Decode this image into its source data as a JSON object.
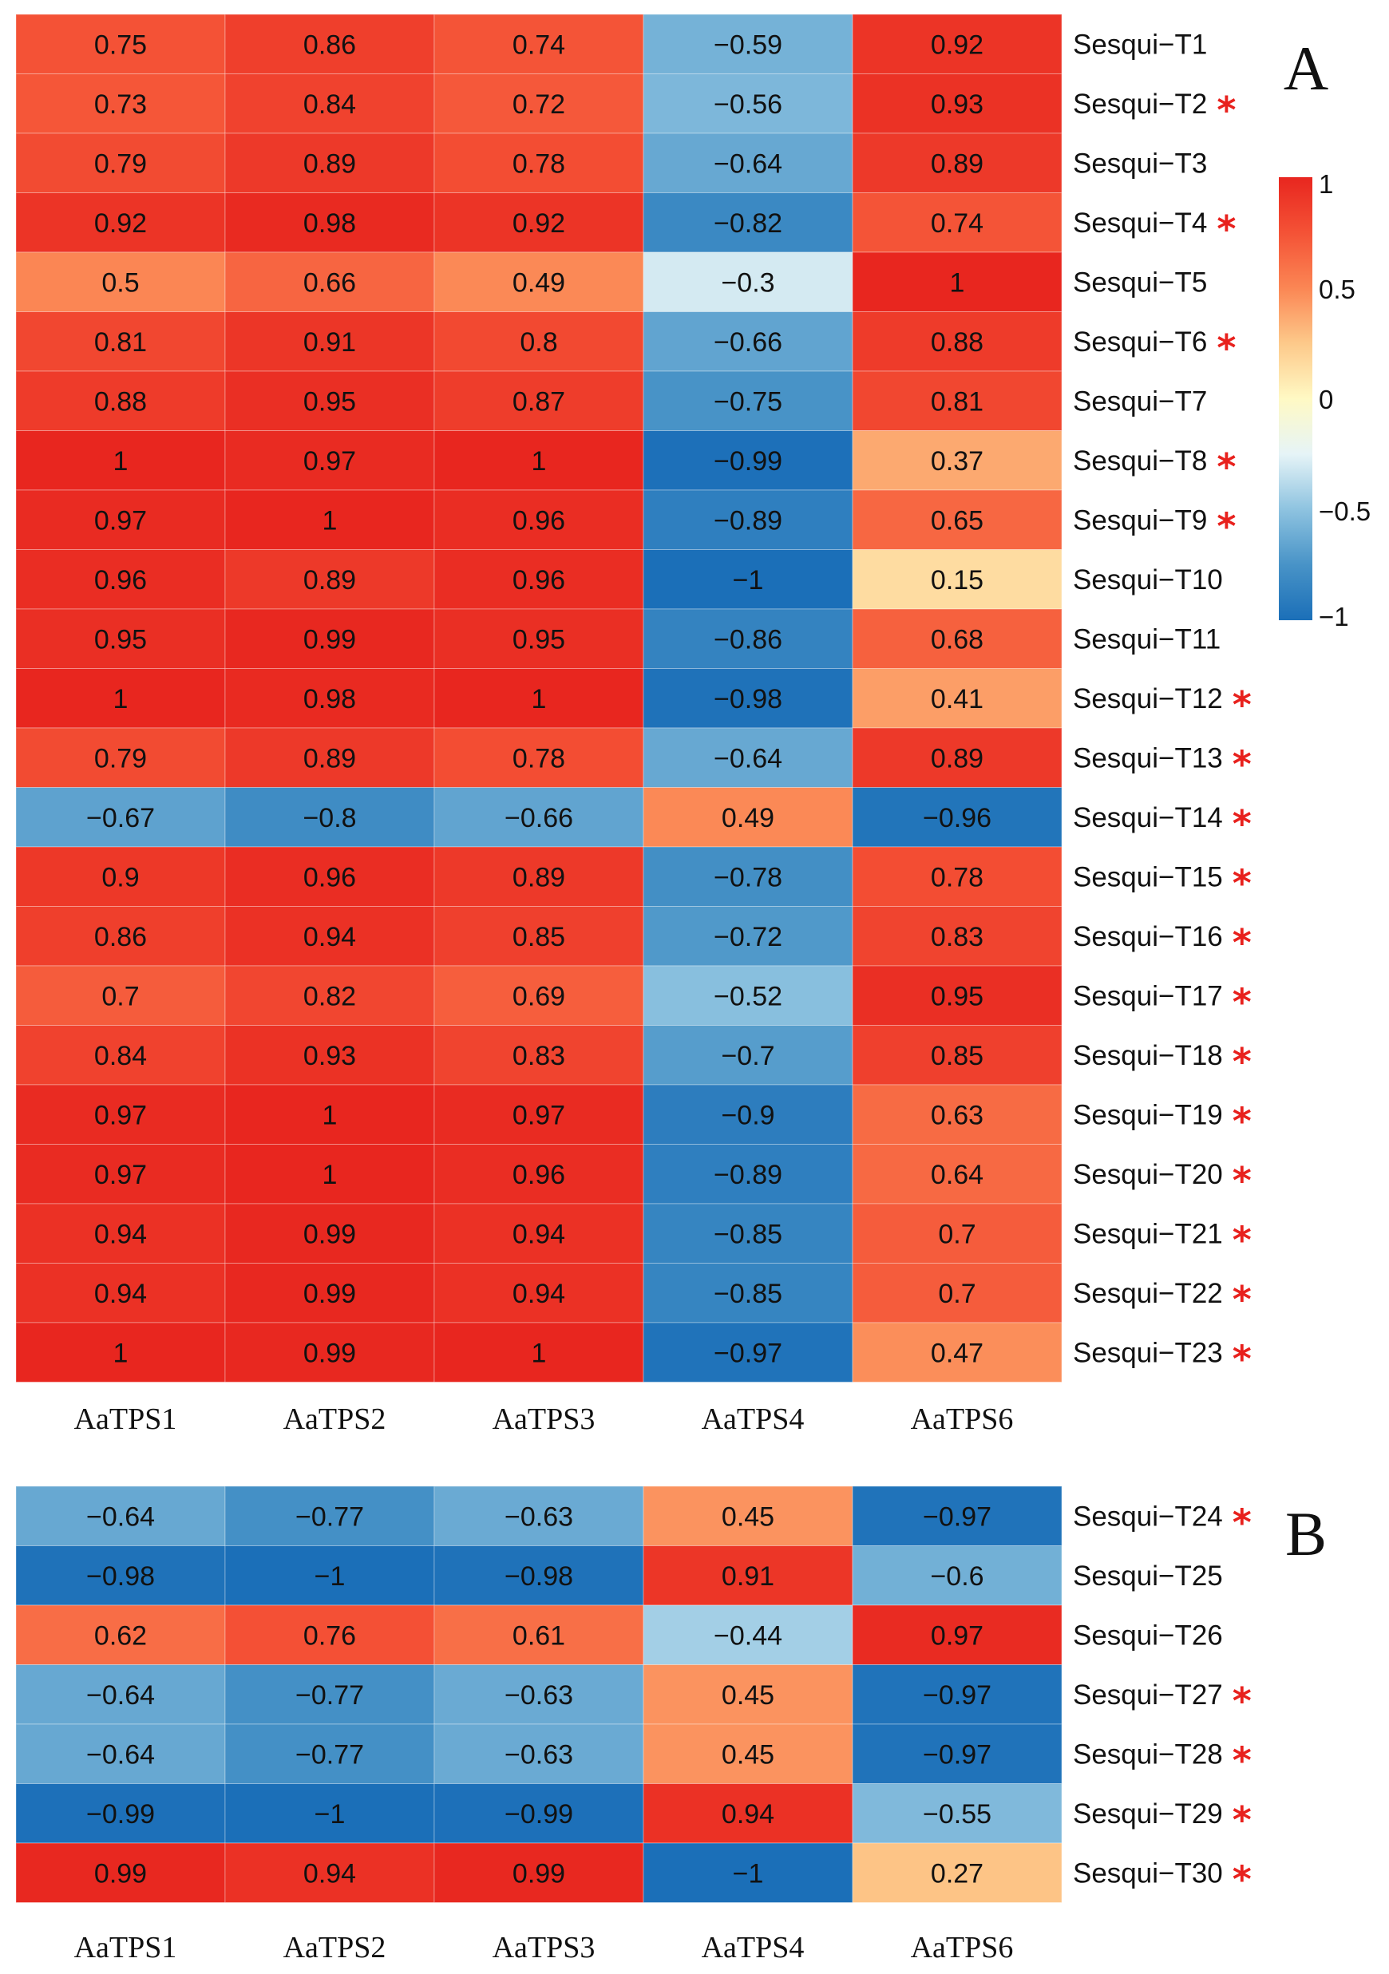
{
  "chart_data": [
    {
      "type": "heatmap",
      "panel": "A",
      "columns": [
        "AaTPS1",
        "AaTPS2",
        "AaTPS3",
        "AaTPS4",
        "AaTPS6"
      ],
      "rows": [
        {
          "label": "Sesqui−T1",
          "star": false,
          "values": [
            "0.75",
            "0.86",
            "0.74",
            "−0.59",
            "0.92"
          ]
        },
        {
          "label": "Sesqui−T2",
          "star": true,
          "values": [
            "0.73",
            "0.84",
            "0.72",
            "−0.56",
            "0.93"
          ]
        },
        {
          "label": "Sesqui−T3",
          "star": false,
          "values": [
            "0.79",
            "0.89",
            "0.78",
            "−0.64",
            "0.89"
          ]
        },
        {
          "label": "Sesqui−T4",
          "star": true,
          "values": [
            "0.92",
            "0.98",
            "0.92",
            "−0.82",
            "0.74"
          ]
        },
        {
          "label": "Sesqui−T5",
          "star": false,
          "values": [
            "0.5",
            "0.66",
            "0.49",
            "−0.3",
            "1"
          ]
        },
        {
          "label": "Sesqui−T6",
          "star": true,
          "values": [
            "0.81",
            "0.91",
            "0.8",
            "−0.66",
            "0.88"
          ]
        },
        {
          "label": "Sesqui−T7",
          "star": false,
          "values": [
            "0.88",
            "0.95",
            "0.87",
            "−0.75",
            "0.81"
          ]
        },
        {
          "label": "Sesqui−T8",
          "star": true,
          "values": [
            "1",
            "0.97",
            "1",
            "−0.99",
            "0.37"
          ]
        },
        {
          "label": "Sesqui−T9",
          "star": true,
          "values": [
            "0.97",
            "1",
            "0.96",
            "−0.89",
            "0.65"
          ]
        },
        {
          "label": "Sesqui−T10",
          "star": false,
          "values": [
            "0.96",
            "0.89",
            "0.96",
            "−1",
            "0.15"
          ]
        },
        {
          "label": "Sesqui−T11",
          "star": false,
          "values": [
            "0.95",
            "0.99",
            "0.95",
            "−0.86",
            "0.68"
          ]
        },
        {
          "label": "Sesqui−T12",
          "star": true,
          "values": [
            "1",
            "0.98",
            "1",
            "−0.98",
            "0.41"
          ]
        },
        {
          "label": "Sesqui−T13",
          "star": true,
          "values": [
            "0.79",
            "0.89",
            "0.78",
            "−0.64",
            "0.89"
          ]
        },
        {
          "label": "Sesqui−T14",
          "star": true,
          "values": [
            "−0.67",
            "−0.8",
            "−0.66",
            "0.49",
            "−0.96"
          ]
        },
        {
          "label": "Sesqui−T15",
          "star": true,
          "values": [
            "0.9",
            "0.96",
            "0.89",
            "−0.78",
            "0.78"
          ]
        },
        {
          "label": "Sesqui−T16",
          "star": true,
          "values": [
            "0.86",
            "0.94",
            "0.85",
            "−0.72",
            "0.83"
          ]
        },
        {
          "label": "Sesqui−T17",
          "star": true,
          "values": [
            "0.7",
            "0.82",
            "0.69",
            "−0.52",
            "0.95"
          ]
        },
        {
          "label": "Sesqui−T18",
          "star": true,
          "values": [
            "0.84",
            "0.93",
            "0.83",
            "−0.7",
            "0.85"
          ]
        },
        {
          "label": "Sesqui−T19",
          "star": true,
          "values": [
            "0.97",
            "1",
            "0.97",
            "−0.9",
            "0.63"
          ]
        },
        {
          "label": "Sesqui−T20",
          "star": true,
          "values": [
            "0.97",
            "1",
            "0.96",
            "−0.89",
            "0.64"
          ]
        },
        {
          "label": "Sesqui−T21",
          "star": true,
          "values": [
            "0.94",
            "0.99",
            "0.94",
            "−0.85",
            "0.7"
          ]
        },
        {
          "label": "Sesqui−T22",
          "star": true,
          "values": [
            "0.94",
            "0.99",
            "0.94",
            "−0.85",
            "0.7"
          ]
        },
        {
          "label": "Sesqui−T23",
          "star": true,
          "values": [
            "1",
            "0.99",
            "1",
            "−0.97",
            "0.47"
          ]
        }
      ]
    },
    {
      "type": "heatmap",
      "panel": "B",
      "columns": [
        "AaTPS1",
        "AaTPS2",
        "AaTPS3",
        "AaTPS4",
        "AaTPS6"
      ],
      "rows": [
        {
          "label": "Sesqui−T24",
          "star": true,
          "values": [
            "−0.64",
            "−0.77",
            "−0.63",
            "0.45",
            "−0.97"
          ]
        },
        {
          "label": "Sesqui−T25",
          "star": false,
          "values": [
            "−0.98",
            "−1",
            "−0.98",
            "0.91",
            "−0.6"
          ]
        },
        {
          "label": "Sesqui−T26",
          "star": false,
          "values": [
            "0.62",
            "0.76",
            "0.61",
            "−0.44",
            "0.97"
          ]
        },
        {
          "label": "Sesqui−T27",
          "star": true,
          "values": [
            "−0.64",
            "−0.77",
            "−0.63",
            "0.45",
            "−0.97"
          ]
        },
        {
          "label": "Sesqui−T28",
          "star": true,
          "values": [
            "−0.64",
            "−0.77",
            "−0.63",
            "0.45",
            "−0.97"
          ]
        },
        {
          "label": "Sesqui−T29",
          "star": true,
          "values": [
            "−0.99",
            "−1",
            "−0.99",
            "0.94",
            "−0.55"
          ]
        },
        {
          "label": "Sesqui−T30",
          "star": true,
          "values": [
            "0.99",
            "0.94",
            "0.99",
            "−1",
            "0.27"
          ]
        }
      ]
    }
  ],
  "legend": {
    "range": [
      -1,
      1
    ],
    "ticks": [
      "1",
      "0.5",
      "0",
      "−0.5",
      "−1"
    ],
    "colors": [
      "#1b6fb8",
      "#4893c7",
      "#8ec3e0",
      "#e6f4f7",
      "#fff9c4",
      "#fdc98a",
      "#fb8654",
      "#f45236",
      "#e8261f"
    ]
  },
  "star_symbol": "*"
}
